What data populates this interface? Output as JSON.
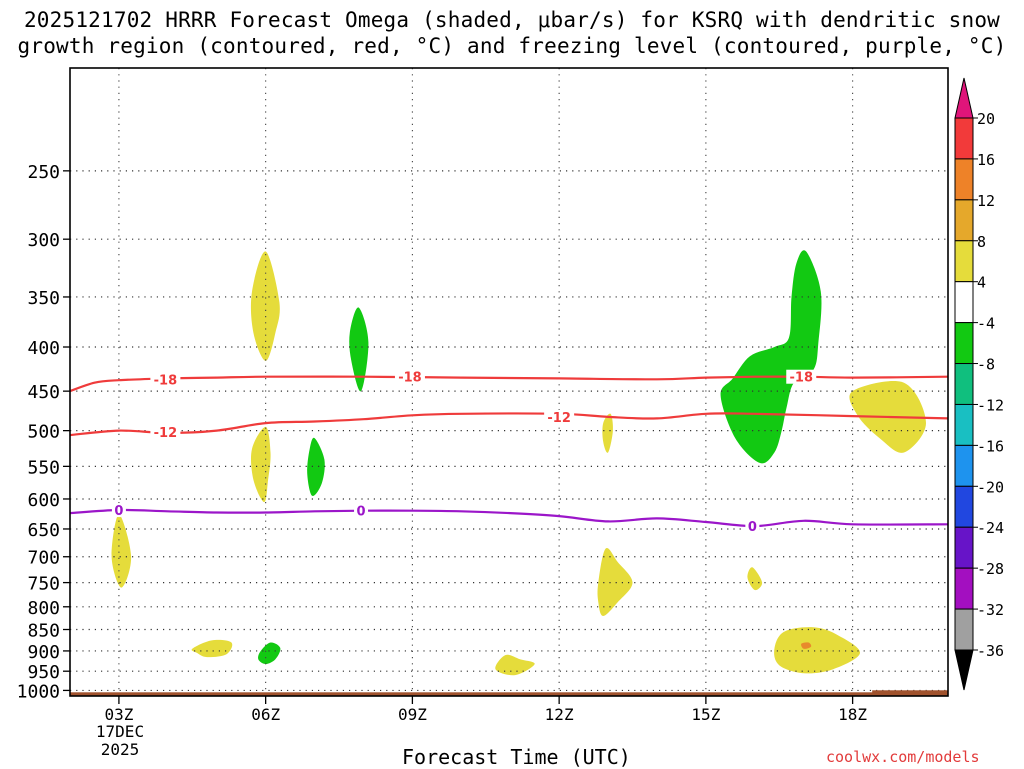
{
  "title_line1": "2025121702 HRRR Forecast Omega (shaded, μbar/s) for KSRQ with dendritic snow",
  "title_line2": "growth region (contoured, red, °C) and freezing level (contoured, purple, °C)",
  "xlabel": "Forecast Time (UTC)",
  "date_line1": "17DEC",
  "date_line2": "2025",
  "credit": "coolwx.com/models",
  "colors": {
    "yellow": "#e5dc3b",
    "green": "#12c912",
    "orange": "#e88a2c",
    "red_contour": "#ef3b3b",
    "purple_contour": "#9b16c9",
    "ground": "#a0522d"
  },
  "chart_data": {
    "type": "contour",
    "x_ticks": [
      "03Z",
      "06Z",
      "09Z",
      "12Z",
      "15Z",
      "18Z"
    ],
    "x_tick_hours": [
      3,
      6,
      9,
      12,
      15,
      18
    ],
    "x_range": [
      2,
      19.95
    ],
    "y_ticks": [
      250,
      300,
      350,
      400,
      450,
      500,
      550,
      600,
      650,
      700,
      750,
      800,
      850,
      900,
      950,
      1000
    ],
    "y_range": [
      190,
      1015
    ],
    "ground_top_hpa": 1005,
    "contours": [
      {
        "name": "-18C",
        "label": "-18",
        "color": "red_contour",
        "points": [
          [
            2,
            450
          ],
          [
            2.5,
            440
          ],
          [
            3,
            437
          ],
          [
            4,
            435
          ],
          [
            5,
            434
          ],
          [
            6,
            433
          ],
          [
            8,
            433
          ],
          [
            10,
            434
          ],
          [
            12,
            435
          ],
          [
            14,
            436
          ],
          [
            15,
            434
          ],
          [
            16,
            433
          ],
          [
            17,
            433
          ],
          [
            18,
            434
          ],
          [
            19.95,
            433
          ]
        ],
        "label_positions": [
          [
            3.95,
            436
          ],
          [
            8.95,
            433
          ],
          [
            16.95,
            433
          ]
        ]
      },
      {
        "name": "-12C",
        "label": "-12",
        "color": "red_contour",
        "points": [
          [
            2,
            506
          ],
          [
            3,
            500
          ],
          [
            4,
            503
          ],
          [
            5,
            500
          ],
          [
            6,
            490
          ],
          [
            7,
            488
          ],
          [
            8,
            485
          ],
          [
            9,
            480
          ],
          [
            10,
            478
          ],
          [
            12,
            478
          ],
          [
            13,
            482
          ],
          [
            14,
            484
          ],
          [
            15,
            478
          ],
          [
            16,
            478
          ],
          [
            18,
            481
          ],
          [
            19.95,
            484
          ]
        ],
        "label_positions": [
          [
            3.95,
            502
          ],
          [
            12,
            482
          ]
        ]
      },
      {
        "name": "0C freezing level",
        "label": "0",
        "color": "purple_contour",
        "points": [
          [
            2,
            623
          ],
          [
            3,
            618
          ],
          [
            4,
            620
          ],
          [
            5,
            622
          ],
          [
            6,
            622
          ],
          [
            7,
            620
          ],
          [
            8,
            619
          ],
          [
            9,
            619
          ],
          [
            10,
            620
          ],
          [
            11,
            623
          ],
          [
            12,
            628
          ],
          [
            13,
            637
          ],
          [
            14,
            632
          ],
          [
            15,
            638
          ],
          [
            16,
            645
          ],
          [
            17,
            636
          ],
          [
            18,
            642
          ],
          [
            19.95,
            642
          ]
        ],
        "label_positions": [
          [
            3,
            618
          ],
          [
            7.95,
            619
          ],
          [
            15.95,
            645
          ]
        ]
      }
    ],
    "shaded_regions": [
      {
        "color": "yellow",
        "omega_range": "4 to 8",
        "points": [
          [
            6,
            310
          ],
          [
            6.28,
            355
          ],
          [
            6.2,
            385
          ],
          [
            6,
            415
          ],
          [
            5.75,
            385
          ],
          [
            5.72,
            345
          ]
        ]
      },
      {
        "color": "green",
        "omega_range": "-8 to -4",
        "points": [
          [
            7.9,
            360
          ],
          [
            8.1,
            395
          ],
          [
            7.95,
            450
          ],
          [
            7.75,
            415
          ],
          [
            7.72,
            385
          ]
        ]
      },
      {
        "color": "yellow",
        "omega_range": "4 to 8",
        "points": [
          [
            6,
            495
          ],
          [
            6.1,
            530
          ],
          [
            6.05,
            570
          ],
          [
            5.97,
            605
          ],
          [
            5.75,
            570
          ],
          [
            5.72,
            525
          ]
        ]
      },
      {
        "color": "green",
        "omega_range": "-8 to -4",
        "points": [
          [
            7,
            510
          ],
          [
            7.2,
            540
          ],
          [
            7.15,
            575
          ],
          [
            6.95,
            595
          ],
          [
            6.85,
            560
          ],
          [
            6.9,
            525
          ]
        ]
      },
      {
        "color": "yellow",
        "omega_range": "4 to 8",
        "points": [
          [
            3,
            625
          ],
          [
            3.25,
            700
          ],
          [
            3.05,
            760
          ],
          [
            2.85,
            700
          ]
        ]
      },
      {
        "color": "yellow",
        "omega_range": "4 to 8",
        "points": [
          [
            4.5,
            895
          ],
          [
            4.9,
            875
          ],
          [
            5.3,
            880
          ],
          [
            5.2,
            908
          ],
          [
            4.8,
            915
          ],
          [
            4.6,
            905
          ]
        ]
      },
      {
        "color": "green",
        "omega_range": "-8 to -4",
        "points": [
          [
            5.9,
            900
          ],
          [
            6.1,
            880
          ],
          [
            6.3,
            893
          ],
          [
            6.2,
            920
          ],
          [
            6,
            932
          ],
          [
            5.85,
            920
          ]
        ]
      },
      {
        "color": "yellow",
        "omega_range": "4 to 8",
        "points": [
          [
            10.7,
            945
          ],
          [
            10.9,
            910
          ],
          [
            11.2,
            920
          ],
          [
            11.5,
            932
          ],
          [
            11.1,
            960
          ]
        ]
      },
      {
        "color": "yellow",
        "omega_range": "4 to 8",
        "points": [
          [
            12.9,
            490
          ],
          [
            13.05,
            478
          ],
          [
            13.1,
            500
          ],
          [
            13.0,
            530
          ],
          [
            12.9,
            515
          ]
        ]
      },
      {
        "color": "yellow",
        "omega_range": "4 to 8",
        "points": [
          [
            12.8,
            750
          ],
          [
            12.95,
            685
          ],
          [
            13.2,
            710
          ],
          [
            13.5,
            750
          ],
          [
            13.2,
            790
          ],
          [
            12.9,
            820
          ],
          [
            12.8,
            790
          ]
        ]
      },
      {
        "color": "green",
        "omega_range": "-8 to -4",
        "points": [
          [
            17.05,
            310
          ],
          [
            17.35,
            345
          ],
          [
            17.3,
            395
          ],
          [
            17.2,
            425
          ],
          [
            16.8,
            440
          ],
          [
            16.65,
            470
          ],
          [
            16.55,
            500
          ],
          [
            16.4,
            530
          ],
          [
            16.1,
            545
          ],
          [
            15.6,
            510
          ],
          [
            15.3,
            455
          ],
          [
            15.55,
            435
          ],
          [
            15.9,
            410
          ],
          [
            16.4,
            400
          ],
          [
            16.7,
            390
          ],
          [
            16.75,
            350
          ],
          [
            16.85,
            320
          ]
        ]
      },
      {
        "color": "yellow",
        "omega_range": "4 to 8",
        "points": [
          [
            18,
            450
          ],
          [
            19.05,
            440
          ],
          [
            19.5,
            490
          ],
          [
            19.05,
            530
          ],
          [
            18.55,
            510
          ],
          [
            18.1,
            480
          ]
        ]
      },
      {
        "color": "yellow",
        "omega_range": "4 to 8",
        "points": [
          [
            15.95,
            720
          ],
          [
            16.15,
            750
          ],
          [
            16.0,
            765
          ],
          [
            15.85,
            740
          ]
        ]
      },
      {
        "color": "yellow",
        "omega_range": "4 to 8",
        "points": [
          [
            16.4,
            895
          ],
          [
            16.6,
            855
          ],
          [
            17.2,
            845
          ],
          [
            17.7,
            863
          ],
          [
            18.15,
            905
          ],
          [
            17.6,
            945
          ],
          [
            17.0,
            955
          ],
          [
            16.5,
            935
          ]
        ]
      },
      {
        "color": "orange",
        "omega_range": "8 to 12",
        "points": [
          [
            16.95,
            883
          ],
          [
            17.1,
            880
          ],
          [
            17.15,
            890
          ],
          [
            17.0,
            895
          ]
        ]
      }
    ],
    "colorbar": {
      "labels": [
        "20",
        "16",
        "12",
        "8",
        "4",
        "-4",
        "-8",
        "-12",
        "-16",
        "-20",
        "-24",
        "-28",
        "-32",
        "-36"
      ],
      "bins": [
        {
          "range": "16 to 20",
          "color": "#f23a3a"
        },
        {
          "range": "12 to 16",
          "color": "#ee8228"
        },
        {
          "range": "8 to 12",
          "color": "#e5a82b"
        },
        {
          "range": "4 to 8",
          "color": "#e5dc3b"
        },
        {
          "range": "-4 to 4",
          "color": "#ffffff"
        },
        {
          "range": "-8 to -4",
          "color": "#12c912"
        },
        {
          "range": "-12 to -8",
          "color": "#10bf7e"
        },
        {
          "range": "-16 to -12",
          "color": "#19bfc2"
        },
        {
          "range": "-20 to -16",
          "color": "#1e93ee"
        },
        {
          "range": "-24 to -20",
          "color": "#2147e0"
        },
        {
          "range": "-28 to -24",
          "color": "#6714c8"
        },
        {
          "range": "-32 to -28",
          "color": "#a30fc0"
        },
        {
          "range": "-36 to -32",
          "color": "#a0a0a0"
        }
      ],
      "top_arrow_color": "#e0157a",
      "bottom_arrow_color": "#000000"
    }
  }
}
